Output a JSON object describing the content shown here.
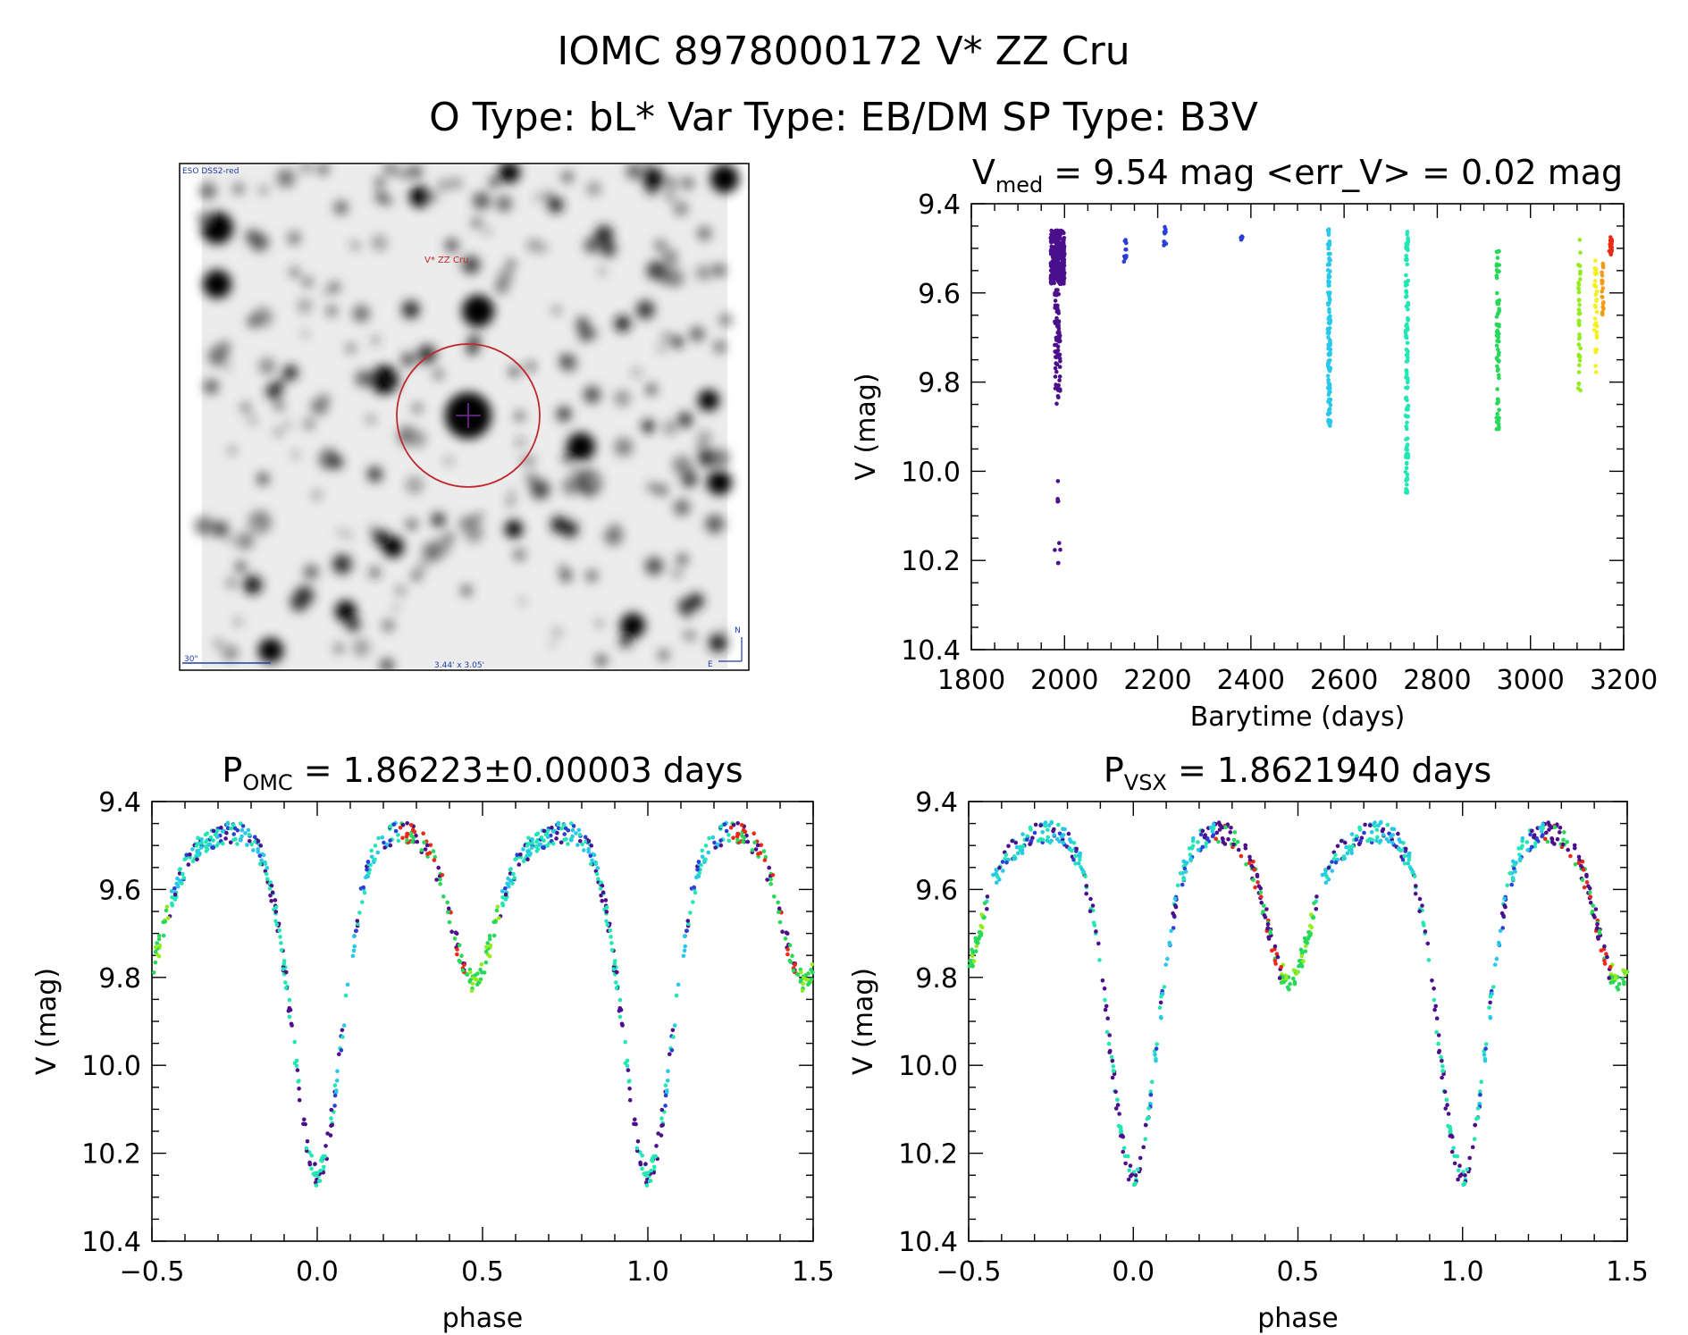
{
  "header": {
    "line1": "IOMC 8978000172    V* ZZ Cru",
    "line2": "O Type: bL*  Var Type: EB/DM  SP Type: B3V"
  },
  "finder": {
    "top_label": "ESO DSS2-red",
    "target_label": "V* ZZ Cru",
    "scale_label": "30\"",
    "fov_label": "3.44' x 3.05'",
    "north_label": "N",
    "east_label": "E",
    "colors": {
      "circle": "#c0282e",
      "crosshair": "#7a2a9a",
      "overlay_text": "#1e3ca8"
    }
  },
  "colors": {
    "palette": [
      "#4b0f8c",
      "#2b3fd6",
      "#29c8ea",
      "#22e6b4",
      "#27d85a",
      "#93ec1c",
      "#f4f01a",
      "#f59a14",
      "#ea2a17"
    ]
  },
  "chart_data": [
    {
      "id": "lightcurve",
      "type": "scatter",
      "title": {
        "pre": "V",
        "sub": "med",
        "post": " = 9.54 mag <err_V> = 0.02 mag"
      },
      "xlabel": "Barytime (days)",
      "ylabel": "V (mag)",
      "xlim": [
        1800,
        3200
      ],
      "ylim": [
        10.4,
        9.4
      ],
      "y_inverted": true,
      "xticks": [
        "1800",
        "2000",
        "2200",
        "2400",
        "2600",
        "2800",
        "3000",
        "3200"
      ],
      "yticks": [
        "9.4",
        "9.6",
        "9.8",
        "10.0",
        "10.2",
        "10.4"
      ],
      "groups": [
        {
          "x": 1985,
          "spread": 30,
          "count": 320,
          "range": [
            9.46,
            9.58
          ],
          "tail": [
            [
              9.58,
              9.85,
              70
            ],
            [
              10.02,
              10.08,
              4
            ],
            [
              10.14,
              10.22,
              5
            ]
          ],
          "color_index": 0
        },
        {
          "x": 2130,
          "spread": 6,
          "count": 10,
          "range": [
            9.48,
            9.53
          ],
          "color_index": 1
        },
        {
          "x": 2215,
          "spread": 6,
          "count": 10,
          "range": [
            9.45,
            9.5
          ],
          "color_index": 1
        },
        {
          "x": 2380,
          "spread": 4,
          "count": 6,
          "range": [
            9.47,
            9.49
          ],
          "color_index": 1
        },
        {
          "x": 2568,
          "spread": 6,
          "count": 110,
          "range": [
            9.45,
            9.9
          ],
          "color_index": 2
        },
        {
          "x": 2735,
          "spread": 6,
          "count": 110,
          "range": [
            9.44,
            10.05
          ],
          "color_index": 3
        },
        {
          "x": 2930,
          "spread": 6,
          "count": 70,
          "range": [
            9.5,
            9.93
          ],
          "color_index": 4
        },
        {
          "x": 3105,
          "spread": 5,
          "count": 40,
          "range": [
            9.48,
            9.82
          ],
          "color_index": 5
        },
        {
          "x": 3140,
          "spread": 6,
          "count": 30,
          "range": [
            9.52,
            9.78
          ],
          "color_index": 6
        },
        {
          "x": 3155,
          "spread": 4,
          "count": 20,
          "range": [
            9.53,
            9.65
          ],
          "color_index": 7
        },
        {
          "x": 3172,
          "spread": 6,
          "count": 25,
          "range": [
            9.47,
            9.52
          ],
          "color_index": 8
        }
      ]
    },
    {
      "id": "phase_omc",
      "type": "scatter",
      "title": {
        "pre": "P",
        "sub": "OMC",
        "post": " = 1.86223±0.00003 days"
      },
      "xlabel": "phase",
      "ylabel": "V (mag)",
      "xlim": [
        -0.5,
        1.5
      ],
      "ylim": [
        10.4,
        9.4
      ],
      "y_inverted": true,
      "xticks": [
        "−0.5",
        "0.0",
        "0.5",
        "1.0",
        "1.5"
      ],
      "yticks": [
        "9.4",
        "9.6",
        "9.8",
        "10.0",
        "10.2",
        "10.4"
      ],
      "lightcurve_model": {
        "base": 9.51,
        "primary_depth": 0.7,
        "primary_center": 0.0,
        "primary_width": 0.07,
        "secondary_depth": 0.26,
        "secondary_center": 0.47,
        "secondary_width": 0.06,
        "points_per_cycle": 420
      }
    },
    {
      "id": "phase_vsx",
      "type": "scatter",
      "title": {
        "pre": "P",
        "sub": "VSX",
        "post": " = 1.8621940 days"
      },
      "xlabel": "phase",
      "ylabel": "V (mag)",
      "xlim": [
        -0.5,
        1.5
      ],
      "ylim": [
        10.4,
        9.4
      ],
      "y_inverted": true,
      "xticks": [
        "−0.5",
        "0.0",
        "0.5",
        "1.0",
        "1.5"
      ],
      "yticks": [
        "9.4",
        "9.6",
        "9.8",
        "10.0",
        "10.2",
        "10.4"
      ],
      "lightcurve_model": {
        "base": 9.51,
        "primary_depth": 0.7,
        "primary_center": 0.0,
        "primary_width": 0.07,
        "secondary_depth": 0.26,
        "secondary_center": 0.47,
        "secondary_width": 0.06,
        "points_per_cycle": 420
      }
    }
  ]
}
